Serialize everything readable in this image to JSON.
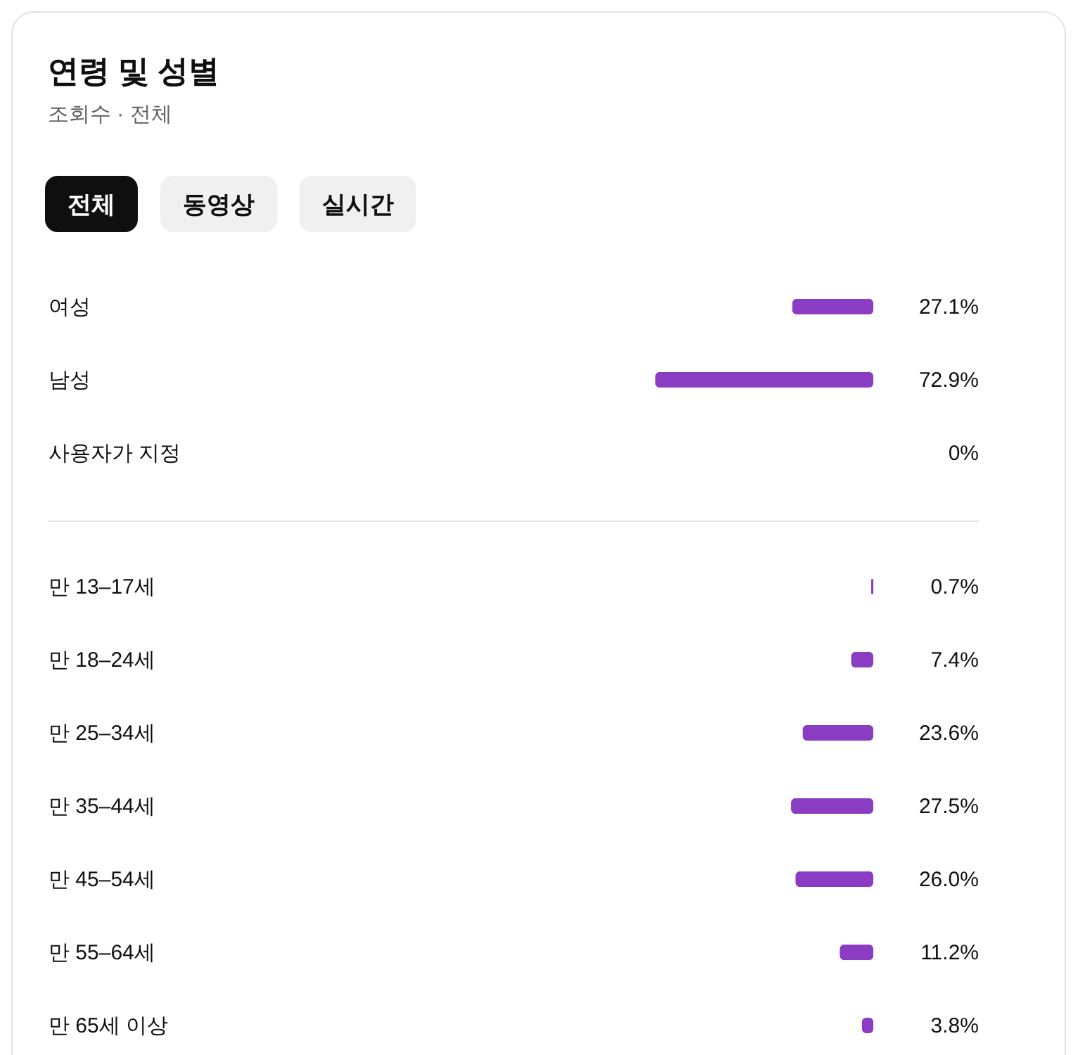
{
  "chart_data": [
    {
      "type": "bar",
      "orientation": "horizontal",
      "title": "연령 및 성별",
      "subtitle": "조회수 · 전체",
      "annotations": [
        "전체",
        "동영상",
        "실시간"
      ],
      "categories": [
        "여성",
        "남성",
        "사용자가 지정"
      ],
      "values": [
        27.1,
        72.9,
        0
      ],
      "value_labels": [
        "27.1%",
        "72.9%",
        "0%"
      ],
      "color": "#8a3cc2"
    },
    {
      "type": "bar",
      "orientation": "horizontal",
      "categories": [
        "만 13–17세",
        "만 18–24세",
        "만 25–34세",
        "만 35–44세",
        "만 45–54세",
        "만 55–64세",
        "만 65세 이상"
      ],
      "values": [
        0.7,
        7.4,
        23.6,
        27.5,
        26.0,
        11.2,
        3.8
      ],
      "value_labels": [
        "0.7%",
        "7.4%",
        "23.6%",
        "27.5%",
        "26.0%",
        "11.2%",
        "3.8%"
      ],
      "color": "#8a3cc2"
    }
  ]
}
